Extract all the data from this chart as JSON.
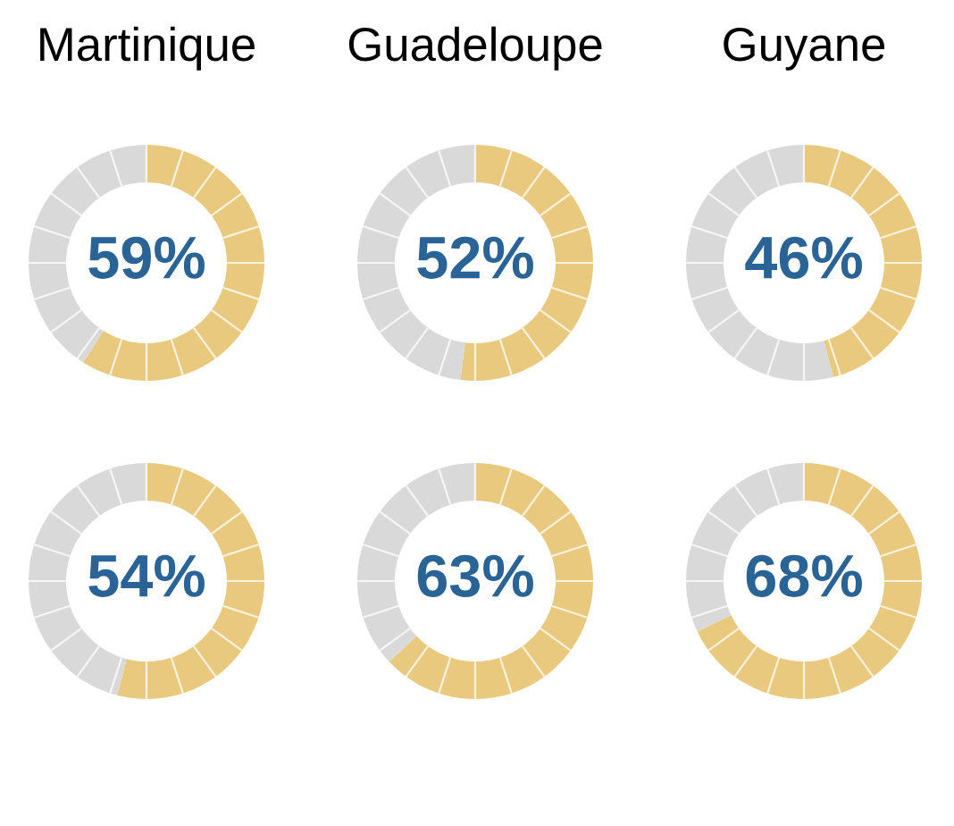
{
  "chart_data": [
    {
      "type": "donut",
      "title": "Martinique",
      "categories": [
        null,
        null
      ],
      "values": [
        59,
        41
      ],
      "colors": [
        "#e8c97e",
        "#d9d9d9"
      ],
      "annotations": [
        "59%"
      ]
    },
    {
      "type": "donut",
      "title": "Guadeloupe",
      "categories": [
        null,
        null
      ],
      "values": [
        52,
        48
      ],
      "colors": [
        "#e8c97e",
        "#d9d9d9"
      ],
      "annotations": [
        "52%"
      ]
    },
    {
      "type": "donut",
      "title": "Guyane",
      "categories": [
        null,
        null
      ],
      "values": [
        46,
        54
      ],
      "colors": [
        "#e8c97e",
        "#d9d9d9"
      ],
      "annotations": [
        "46%"
      ]
    },
    {
      "type": "donut",
      "categories": [
        null,
        null
      ],
      "values": [
        54,
        46
      ],
      "colors": [
        "#e8c97e",
        "#d9d9d9"
      ],
      "annotations": [
        "54%"
      ]
    },
    {
      "type": "donut",
      "categories": [
        null,
        null
      ],
      "values": [
        63,
        37
      ],
      "colors": [
        "#e8c97e",
        "#d9d9d9"
      ],
      "annotations": [
        "63%"
      ]
    },
    {
      "type": "donut",
      "categories": [
        null,
        null
      ],
      "values": [
        68,
        32
      ],
      "colors": [
        "#e8c97e",
        "#d9d9d9"
      ],
      "annotations": [
        "68%"
      ]
    }
  ]
}
